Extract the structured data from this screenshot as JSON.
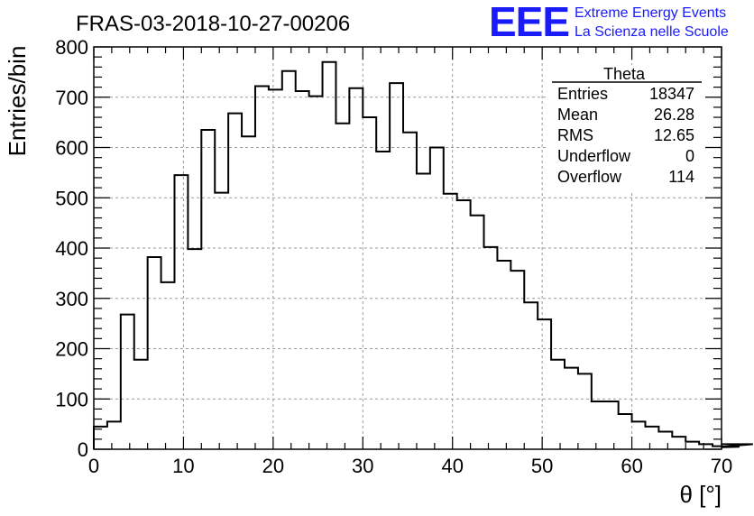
{
  "header": {
    "run_title": "FRAS-03-2018-10-27-00206",
    "logo_text": "EEE",
    "logo_line1": "Extreme Energy Events",
    "logo_line2": "La Scienza nelle Scuole"
  },
  "stats_box": {
    "title": "Theta",
    "rows": [
      {
        "label": "Entries",
        "value": "18347"
      },
      {
        "label": "Mean",
        "value": "26.28"
      },
      {
        "label": "RMS",
        "value": "12.65"
      },
      {
        "label": "Underflow",
        "value": "0"
      },
      {
        "label": "Overflow",
        "value": "114"
      }
    ]
  },
  "colors": {
    "line": "#000000",
    "grid": "#9a9a9a",
    "logo": "#1a1aff"
  },
  "chart_data": {
    "type": "bar",
    "style": "step-histogram",
    "title": "FRAS-03-2018-10-27-00206",
    "xlabel": "θ [°]",
    "ylabel": "Entries/bin",
    "xlim": [
      0,
      70
    ],
    "ylim": [
      0,
      800
    ],
    "x_ticks": [
      0,
      10,
      20,
      30,
      40,
      50,
      60,
      70
    ],
    "y_ticks": [
      0,
      100,
      200,
      300,
      400,
      500,
      600,
      700,
      800
    ],
    "grid": true,
    "legend": "top-right",
    "bin_width": 1.5,
    "x_start": 0,
    "values": [
      45,
      55,
      268,
      178,
      382,
      332,
      545,
      398,
      635,
      510,
      668,
      622,
      722,
      715,
      752,
      712,
      702,
      770,
      648,
      718,
      660,
      592,
      728,
      630,
      548,
      600,
      508,
      495,
      465,
      402,
      375,
      355,
      292,
      258,
      178,
      162,
      150,
      95,
      95,
      70,
      55,
      45,
      35,
      25,
      15,
      10,
      6,
      4,
      5,
      10
    ]
  }
}
